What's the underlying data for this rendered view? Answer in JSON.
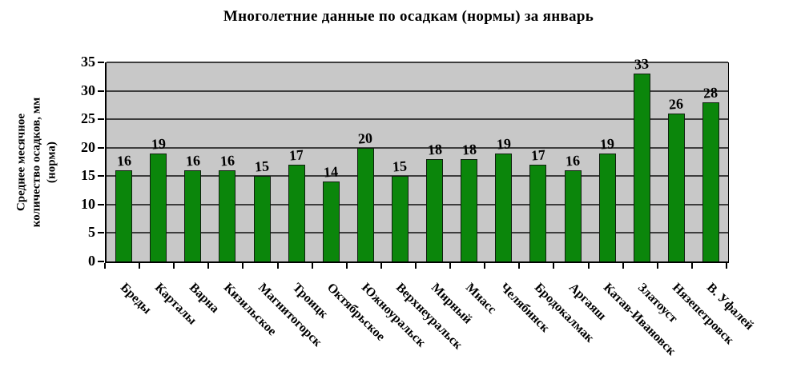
{
  "chart_data": {
    "type": "bar",
    "title": "Многолетние данные по осадкам (нормы) за январь",
    "ylabel": "Среднее месячное количество осадков, мм (норма)",
    "ylabel_lines": [
      "Среднее месячное",
      "количество осадков, мм",
      "(норма)"
    ],
    "xlabel": "",
    "categories": [
      "Бреды",
      "Карталы",
      "Варна",
      "Кизильское",
      "Магнитогорск",
      "Троицк",
      "Октябрьское",
      "Южноуральск",
      "Верхнеуральск",
      "Мирный",
      "Миасс",
      "Челябинск",
      "Бродокалмак",
      "Аргаяш",
      "Катав-Ивановск",
      "Златоуст",
      "Нязепетровск",
      "В. Уфалей"
    ],
    "values": [
      16,
      19,
      16,
      16,
      15,
      17,
      14,
      20,
      15,
      18,
      18,
      19,
      17,
      16,
      19,
      33,
      26,
      28
    ],
    "ylim": [
      0,
      35
    ],
    "ytick_step": 5,
    "ytick_labels": [
      "0",
      "5",
      "10",
      "15",
      "20",
      "25",
      "30",
      "35"
    ],
    "grid": true,
    "legend_position": "none",
    "bar_color": "#0b860b",
    "bar_border_color": "#0f1f0f",
    "plot_bg_color": "#c8c8c8",
    "gridline_color": "#3d3d3d",
    "text_color": "#000000"
  }
}
